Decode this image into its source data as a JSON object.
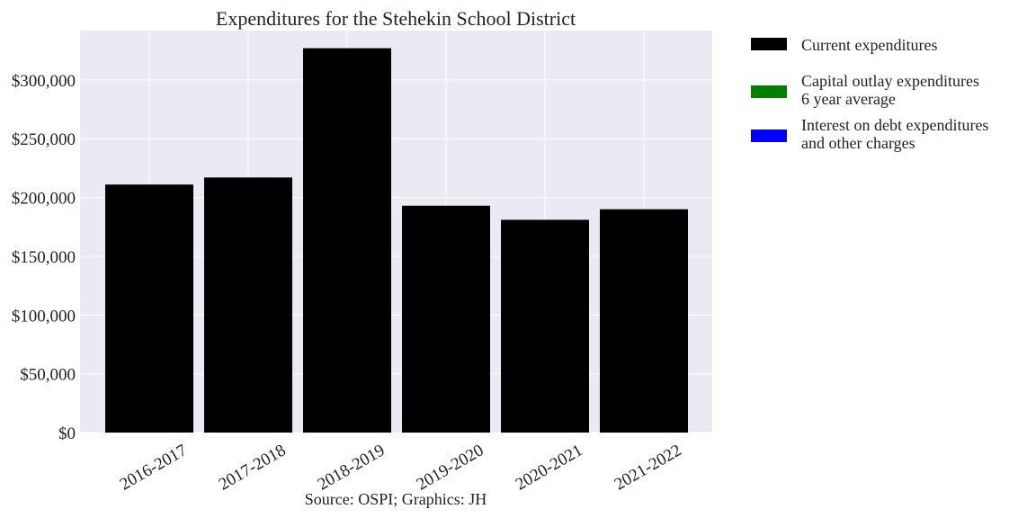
{
  "chart_data": {
    "type": "bar",
    "title": "Expenditures for the Stehekin School District",
    "categories": [
      "2016-2017",
      "2017-2018",
      "2018-2019",
      "2019-2020",
      "2020-2021",
      "2021-2022"
    ],
    "series": [
      {
        "name": "Current expenditures",
        "color": "#000000",
        "values": [
          211000,
          217000,
          327000,
          193000,
          181000,
          190000
        ]
      }
    ],
    "legend_entries": [
      {
        "lines": [
          "Current expenditures"
        ],
        "color": "#000000"
      },
      {
        "lines": [
          "Capital outlay expenditures",
          "6 year average"
        ],
        "color": "#008000"
      },
      {
        "lines": [
          "Interest on debt expenditures",
          "and other charges"
        ],
        "color": "#0000ff"
      }
    ],
    "yticks": [
      "$0",
      "$50,000",
      "$100,000",
      "$150,000",
      "$200,000",
      "$250,000",
      "$300,000"
    ],
    "ytick_values": [
      0,
      50000,
      100000,
      150000,
      200000,
      250000,
      300000
    ],
    "ylim": [
      0,
      342000
    ],
    "grid": true,
    "legend_position": "outside-right",
    "plot_background": "#eaeaf2",
    "source": "Source: OSPI; Graphics: JH"
  }
}
